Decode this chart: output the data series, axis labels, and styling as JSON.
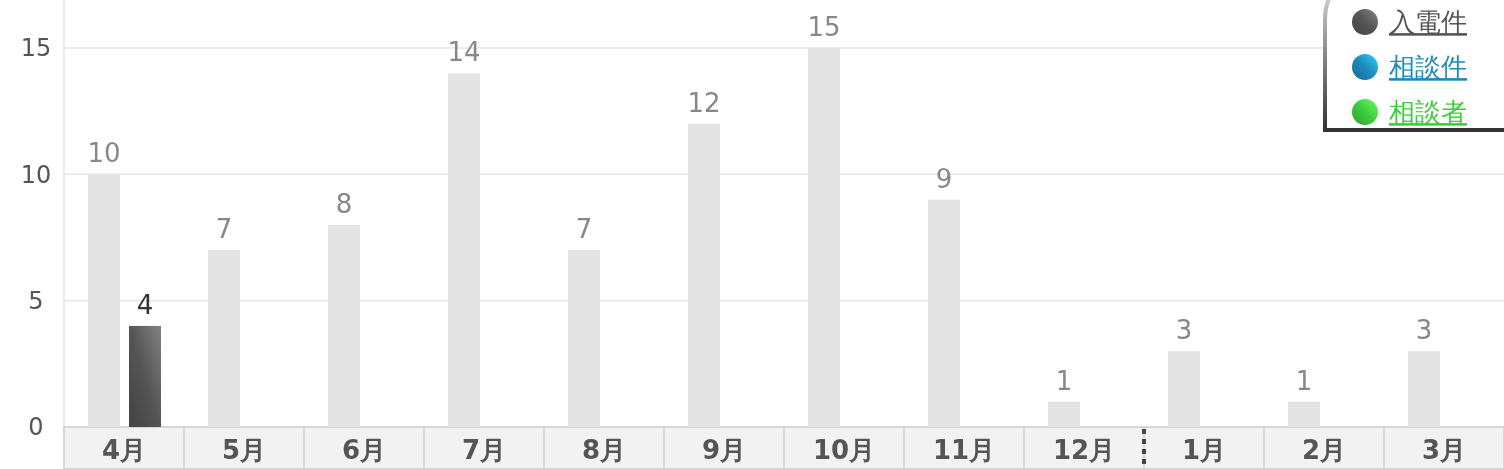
{
  "chart_data": {
    "type": "bar",
    "categories": [
      "4月",
      "5月",
      "6月",
      "7月",
      "8月",
      "9月",
      "10月",
      "11月",
      "12月",
      "1月",
      "2月",
      "3月"
    ],
    "series": [
      {
        "color": "#e4e4e4",
        "values": [
          10,
          7,
          8,
          14,
          7,
          12,
          15,
          9,
          1,
          3,
          1,
          3
        ]
      },
      {
        "name": "入電件",
        "color": "#555555",
        "values": [
          4,
          null,
          null,
          null,
          null,
          null,
          null,
          null,
          null,
          null,
          null,
          null
        ]
      },
      {
        "name": "相談件",
        "color": "#1e8bbd",
        "values": [
          null,
          null,
          null,
          null,
          null,
          null,
          null,
          null,
          null,
          null,
          null,
          null
        ]
      },
      {
        "name": "相談者",
        "color": "#3fcc3f",
        "values": [
          null,
          null,
          null,
          null,
          null,
          null,
          null,
          null,
          null,
          null,
          null,
          null
        ]
      }
    ],
    "ylim": [
      0,
      16.9
    ],
    "yticks": [
      0,
      5,
      10,
      15
    ],
    "grid": "y",
    "data_labels": true,
    "legend": "top right"
  }
}
